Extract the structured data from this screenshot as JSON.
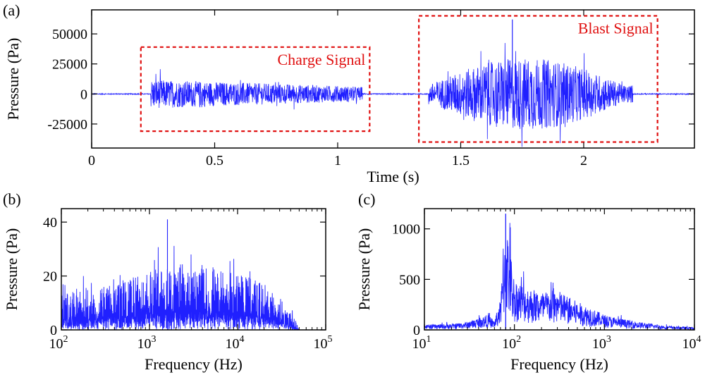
{
  "chart_data": [
    {
      "panel_label": "(a)",
      "type": "line",
      "title": "",
      "xlabel": "Time (s)",
      "ylabel": "Pressure (Pa)",
      "xlim": [
        0,
        2.45
      ],
      "ylim": [
        -45000,
        70000
      ],
      "x_ticks": [
        0,
        0.5,
        1,
        1.5,
        2
      ],
      "x_tick_labels": [
        "0",
        "0.5",
        "1",
        "1.5",
        "2"
      ],
      "y_ticks": [
        -25000,
        0,
        25000,
        50000
      ],
      "y_tick_labels": [
        "-25000",
        "0",
        "25000",
        "50000"
      ],
      "series_color": "#2020ff",
      "annotations": [
        {
          "label": "Charge Signal",
          "x_range": [
            0.2,
            1.13
          ],
          "y_range": [
            -31000,
            39000
          ]
        },
        {
          "label": "Blast Signal",
          "x_range": [
            1.33,
            2.3
          ],
          "y_range": [
            -40000,
            65000
          ]
        }
      ],
      "annotation_color": "#e01010",
      "signal_segments": [
        {
          "x_range": [
            0.24,
            1.1
          ],
          "amplitude": 12000
        },
        {
          "x_range": [
            1.37,
            2.2
          ],
          "amplitude": 25000
        }
      ],
      "peak": {
        "x": 1.71,
        "y": 62000
      }
    },
    {
      "panel_label": "(b)",
      "type": "line",
      "xlabel": "Frequency (Hz)",
      "ylabel": "Pressure (Pa)",
      "xscale": "log",
      "xlim": [
        100,
        100000
      ],
      "ylim": [
        0,
        45
      ],
      "x_ticks": [
        100,
        1000,
        10000,
        100000
      ],
      "x_tick_labels": [
        {
          "base": "10",
          "exp": "2"
        },
        {
          "base": "10",
          "exp": "3"
        },
        {
          "base": "10",
          "exp": "4"
        },
        {
          "base": "10",
          "exp": "5"
        }
      ],
      "y_ticks": [
        0,
        20,
        40
      ],
      "y_tick_labels": [
        "0",
        "20",
        "40"
      ],
      "series_color": "#2020ff",
      "envelope": {
        "x": [
          100,
          200,
          500,
          1000,
          2000,
          5000,
          10000,
          20000,
          30000,
          45000,
          50000
        ],
        "y": [
          14,
          15,
          18,
          22,
          25,
          24,
          21,
          17,
          12,
          4,
          0
        ]
      },
      "peak": {
        "x": 1600,
        "y": 41
      }
    },
    {
      "panel_label": "(c)",
      "type": "line",
      "xlabel": "Frequency (Hz)",
      "ylabel": "Pressure (Pa)",
      "xscale": "log",
      "xlim": [
        10,
        10000
      ],
      "ylim": [
        0,
        1200
      ],
      "x_ticks": [
        10,
        100,
        1000,
        10000
      ],
      "x_tick_labels": [
        {
          "base": "10",
          "exp": "1"
        },
        {
          "base": "10",
          "exp": "2"
        },
        {
          "base": "10",
          "exp": "3"
        },
        {
          "base": "10",
          "exp": "4"
        }
      ],
      "y_ticks": [
        0,
        500,
        1000
      ],
      "y_tick_labels": [
        "0",
        "500",
        "1000"
      ],
      "series_color": "#2020ff",
      "envelope": {
        "x": [
          10,
          20,
          30,
          40,
          50,
          60,
          70,
          80,
          100,
          150,
          200,
          300,
          400,
          500,
          700,
          1000,
          2000,
          5000,
          10000
        ],
        "y": [
          50,
          60,
          80,
          120,
          150,
          100,
          300,
          1100,
          500,
          420,
          380,
          400,
          330,
          280,
          220,
          150,
          90,
          40,
          25
        ]
      },
      "peak": {
        "x": 80,
        "y": 1150
      }
    }
  ]
}
